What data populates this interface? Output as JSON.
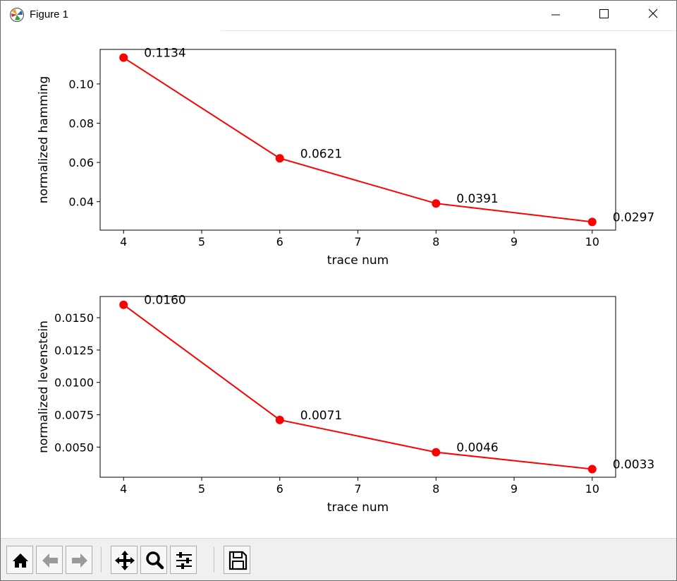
{
  "window": {
    "title": "Figure 1"
  },
  "toolbar": {
    "buttons": [
      {
        "name": "home",
        "icon": "home-icon"
      },
      {
        "name": "back",
        "icon": "back-arrow-icon"
      },
      {
        "name": "forward",
        "icon": "forward-arrow-icon"
      },
      {
        "name": "pan",
        "icon": "move-icon"
      },
      {
        "name": "zoom",
        "icon": "zoom-icon"
      },
      {
        "name": "configure-subplots",
        "icon": "sliders-icon"
      },
      {
        "name": "save",
        "icon": "save-icon"
      }
    ]
  },
  "chart_data": [
    {
      "type": "line",
      "xlabel": "trace num",
      "ylabel": "normalized hamming",
      "x": [
        4,
        6,
        8,
        10
      ],
      "series": [
        {
          "values": [
            0.1134,
            0.0621,
            0.0391,
            0.0297
          ],
          "color": "#ff0000"
        }
      ],
      "data_labels": [
        "0.1134",
        "0.0621",
        "0.0391",
        "0.0297"
      ],
      "xticks": [
        4,
        5,
        6,
        7,
        8,
        9,
        10
      ],
      "yticks": [
        0.04,
        0.06,
        0.08,
        0.1
      ],
      "ytick_labels": [
        "0.04",
        "0.06",
        "0.08",
        "0.10"
      ],
      "xlim": [
        3.7,
        10.3
      ],
      "ylim": [
        0.0255,
        0.1176
      ],
      "grid": false
    },
    {
      "type": "line",
      "xlabel": "trace num",
      "ylabel": "normalized levenstein",
      "x": [
        4,
        6,
        8,
        10
      ],
      "series": [
        {
          "values": [
            0.016,
            0.0071,
            0.0046,
            0.0033
          ],
          "color": "#ff0000"
        }
      ],
      "data_labels": [
        "0.0160",
        "0.0071",
        "0.0046",
        "0.0033"
      ],
      "xticks": [
        4,
        5,
        6,
        7,
        8,
        9,
        10
      ],
      "yticks": [
        0.005,
        0.0075,
        0.01,
        0.0125,
        0.015
      ],
      "ytick_labels": [
        "0.0050",
        "0.0075",
        "0.0100",
        "0.0125",
        "0.0150"
      ],
      "xlim": [
        3.7,
        10.3
      ],
      "ylim": [
        0.00267,
        0.01664
      ],
      "grid": false
    }
  ]
}
